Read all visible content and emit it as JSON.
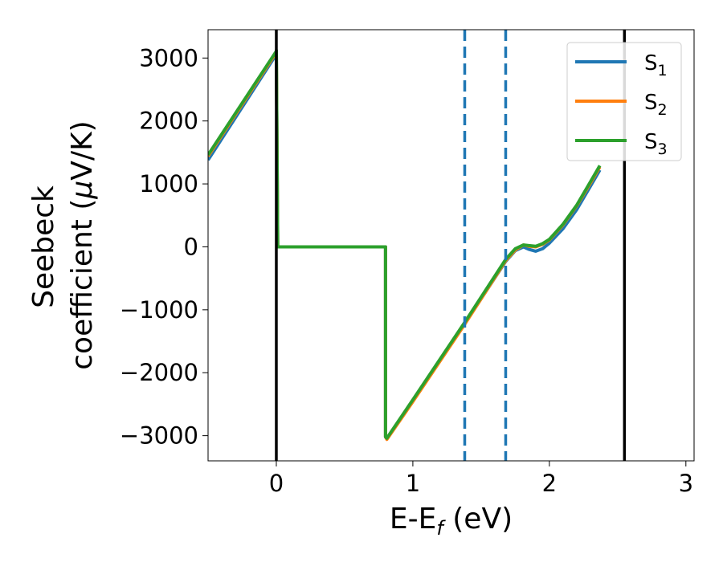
{
  "chart_data": {
    "type": "line",
    "xlabel": "E-E",
    "xlabel_sub": "f",
    "xlabel_unit": " (eV)",
    "ylabel_line1": "Seebeck",
    "ylabel_line2_pre": "coefficient  (",
    "ylabel_mu": "μ",
    "ylabel_line2_post": "V/K)",
    "xlim": [
      -0.5,
      3.06
    ],
    "ylim": [
      -3400,
      3450
    ],
    "xticks": [
      0,
      1,
      2,
      3
    ],
    "xtick_labels": [
      "0",
      "1",
      "2",
      "3"
    ],
    "yticks": [
      3000,
      2000,
      1000,
      0,
      -1000,
      -2000,
      -3000
    ],
    "ytick_labels": [
      "3000",
      "2000",
      "1000",
      "0",
      "−1000",
      "−2000",
      "−3000"
    ],
    "grid": false,
    "legend_position": "top-right",
    "vlines": [
      {
        "x": 0.0,
        "style": "solid",
        "color": "#000000"
      },
      {
        "x": 2.55,
        "style": "solid",
        "color": "#000000"
      },
      {
        "x": 1.38,
        "style": "dashed",
        "color": "#1f77b4"
      },
      {
        "x": 1.68,
        "style": "dashed",
        "color": "#1f77b4"
      }
    ],
    "series": [
      {
        "name": "S",
        "sub": "1",
        "color": "#1f77b4",
        "points": [
          [
            -0.5,
            1380
          ],
          [
            0.0,
            3060
          ],
          [
            0.0,
            3110
          ],
          [
            0.01,
            0
          ],
          [
            0.8,
            0
          ],
          [
            0.8,
            -3020
          ],
          [
            0.81,
            -3050
          ],
          [
            1.0,
            -2440
          ],
          [
            1.38,
            -1220
          ],
          [
            1.68,
            -230
          ],
          [
            1.75,
            -60
          ],
          [
            1.81,
            0
          ],
          [
            1.85,
            -40
          ],
          [
            1.9,
            -70
          ],
          [
            1.95,
            -30
          ],
          [
            2.0,
            60
          ],
          [
            2.1,
            290
          ],
          [
            2.2,
            590
          ],
          [
            2.3,
            960
          ],
          [
            2.37,
            1220
          ]
        ]
      },
      {
        "name": "S",
        "sub": "2",
        "color": "#ff7f0e",
        "points": [
          [
            -0.5,
            1440
          ],
          [
            0.0,
            3090
          ],
          [
            0.0,
            3110
          ],
          [
            0.01,
            0
          ],
          [
            0.8,
            0
          ],
          [
            0.8,
            -3020
          ],
          [
            0.81,
            -3060
          ],
          [
            1.0,
            -2460
          ],
          [
            1.38,
            -1230
          ],
          [
            1.68,
            -220
          ],
          [
            1.75,
            -50
          ],
          [
            1.81,
            30
          ],
          [
            1.85,
            10
          ],
          [
            1.9,
            0
          ],
          [
            1.95,
            40
          ],
          [
            2.0,
            110
          ],
          [
            2.1,
            350
          ],
          [
            2.2,
            650
          ],
          [
            2.3,
            1010
          ],
          [
            2.37,
            1270
          ]
        ]
      },
      {
        "name": "S",
        "sub": "3",
        "color": "#2ca02c",
        "points": [
          [
            -0.5,
            1460
          ],
          [
            0.0,
            3110
          ],
          [
            0.0,
            3120
          ],
          [
            0.01,
            0
          ],
          [
            0.8,
            0
          ],
          [
            0.8,
            -3020
          ],
          [
            0.81,
            -3040
          ],
          [
            1.0,
            -2430
          ],
          [
            1.38,
            -1200
          ],
          [
            1.68,
            -200
          ],
          [
            1.75,
            -30
          ],
          [
            1.81,
            30
          ],
          [
            1.85,
            20
          ],
          [
            1.9,
            10
          ],
          [
            1.95,
            50
          ],
          [
            2.0,
            120
          ],
          [
            2.1,
            360
          ],
          [
            2.2,
            660
          ],
          [
            2.3,
            1030
          ],
          [
            2.37,
            1290
          ]
        ]
      }
    ]
  }
}
